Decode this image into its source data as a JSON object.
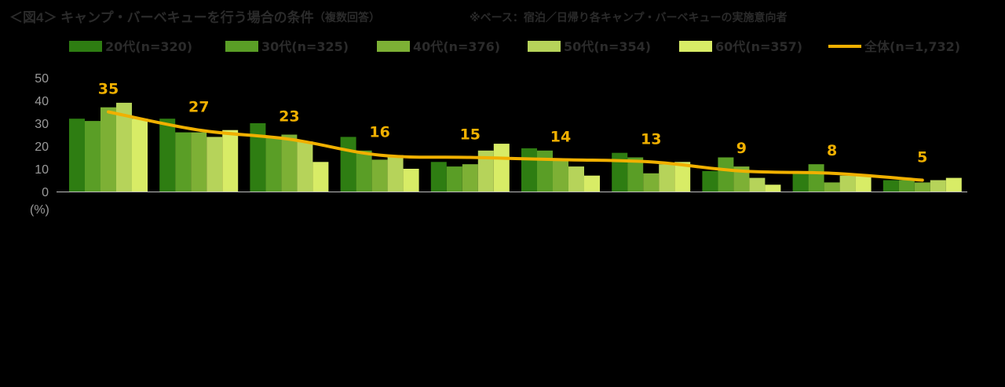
{
  "title": "＜図4＞ キャンプ・バーベキューを行う場合の条件",
  "title_note": "（複数回答）",
  "base_note": "※ベース：宿泊／日帰り各キャンプ・バーベキューの実施意向者",
  "unit_label": "(%)",
  "colors": {
    "background": "#000000",
    "title": "#2b2b2b",
    "tick": "#9a9a9a",
    "legend_text": "#2b2b2b",
    "axis": "#bdbdbd",
    "total_line": "#f0b000",
    "data_label": "#f0b000"
  },
  "chart_data": {
    "type": "bar",
    "categories": [
      "",
      "",
      "",
      "",
      "",
      "",
      "",
      "",
      "",
      ""
    ],
    "ylim": [
      0,
      50
    ],
    "yticks": [
      0,
      10,
      20,
      30,
      40,
      50
    ],
    "ylabel": "(%)",
    "xlabel": "",
    "grid": false,
    "legend_position": "top",
    "series": [
      {
        "name": "20代(n=320)",
        "color": "#2e7d12",
        "values": [
          32,
          32,
          30,
          24,
          13,
          19,
          17,
          9,
          8,
          5
        ]
      },
      {
        "name": "30代(n=325)",
        "color": "#5a9e26",
        "values": [
          31,
          26,
          24,
          18,
          11,
          18,
          15,
          15,
          12,
          5
        ]
      },
      {
        "name": "40代(n=376)",
        "color": "#7db035",
        "values": [
          37,
          26,
          25,
          14,
          12,
          14,
          8,
          11,
          4,
          4
        ]
      },
      {
        "name": "50代(n=354)",
        "color": "#b6d35a",
        "values": [
          39,
          24,
          22,
          16,
          18,
          11,
          12,
          6,
          7,
          5
        ]
      },
      {
        "name": "60代(n=357)",
        "color": "#d8ec66",
        "values": [
          32,
          27,
          13,
          10,
          21,
          7,
          13,
          3,
          7,
          6
        ]
      }
    ],
    "line": {
      "name": "全体(n=1,732)",
      "color": "#f0b000",
      "values": [
        35,
        27,
        23,
        16,
        15,
        14,
        13,
        9,
        8,
        5
      ],
      "labels": [
        "35",
        "27",
        "23",
        "16",
        "15",
        "14",
        "13",
        "9",
        "8",
        "5"
      ]
    }
  }
}
